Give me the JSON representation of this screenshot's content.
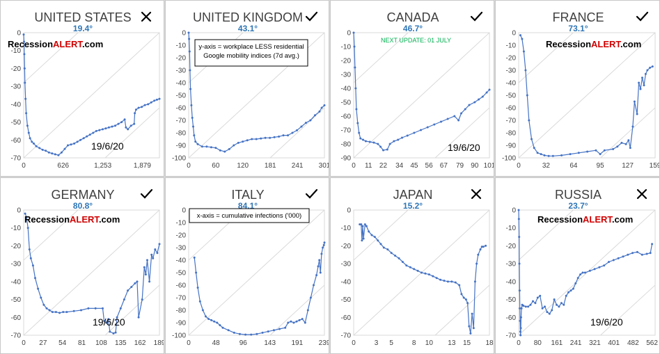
{
  "colors": {
    "series": "#4472c4",
    "angle": "#2e75b6",
    "diagonal": "#d9d9d9",
    "brand_red": "#d00000",
    "update_green": "#00b050"
  },
  "icons": {
    "check": "check-icon",
    "cross": "cross-icon"
  },
  "chart_data": [
    {
      "type": "scatter",
      "title": "UNITED STATES",
      "angle_label": "19.4°",
      "status": "cross",
      "brand": [
        "Recession",
        "ALERT",
        ".com"
      ],
      "date_label": "19/6/20",
      "note": [],
      "update_note": "",
      "xticks": [
        "0",
        "626",
        "1,253",
        "1,879"
      ],
      "xlim": [
        0,
        2150
      ],
      "yticks": [
        "0",
        "-10",
        "-20",
        "-30",
        "-40",
        "-50",
        "-60",
        "-70"
      ],
      "ylim": [
        -70,
        0
      ],
      "x": [
        0,
        5,
        10,
        15,
        20,
        30,
        40,
        60,
        80,
        100,
        130,
        160,
        200,
        250,
        300,
        350,
        400,
        450,
        500,
        550,
        600,
        650,
        700,
        750,
        800,
        850,
        900,
        950,
        1000,
        1050,
        1100,
        1150,
        1200,
        1250,
        1300,
        1350,
        1400,
        1450,
        1500,
        1550,
        1600,
        1620,
        1650,
        1700,
        1750,
        1760,
        1780,
        1820,
        1870,
        1920,
        1970,
        2020,
        2070,
        2110,
        2150
      ],
      "y": [
        -1,
        -5,
        -12,
        -20,
        -28,
        -37,
        -45,
        -52,
        -56,
        -59,
        -61,
        -62,
        -63.5,
        -64.5,
        -65.5,
        -66,
        -67,
        -67.5,
        -68,
        -68.5,
        -67,
        -65,
        -63,
        -62.5,
        -62,
        -61,
        -60,
        -59,
        -58,
        -57,
        -56,
        -55,
        -54.5,
        -54,
        -53.5,
        -53,
        -52.5,
        -52,
        -51,
        -50,
        -48.5,
        -53,
        -54,
        -52,
        -51,
        -45,
        -43,
        -42,
        -41.5,
        -40.5,
        -40,
        -39,
        -38,
        -37.5,
        -37
      ]
    },
    {
      "type": "scatter",
      "title": "UNITED KINGDOM",
      "angle_label": "43.1°",
      "status": "check",
      "brand": [],
      "date_label": "",
      "note": [
        "y-axis = workplace LESS residential",
        "Google mobility indices (7d avg.)"
      ],
      "update_note": "",
      "xticks": [
        "0",
        "60",
        "120",
        "181",
        "241",
        "301"
      ],
      "xlim": [
        0,
        301
      ],
      "yticks": [
        "0",
        "-10",
        "-20",
        "-30",
        "-40",
        "-50",
        "-60",
        "-70",
        "-80",
        "-90",
        "-100"
      ],
      "ylim": [
        -100,
        0
      ],
      "x": [
        0,
        1,
        2,
        3,
        4,
        6,
        8,
        10,
        12,
        15,
        20,
        30,
        40,
        50,
        60,
        70,
        80,
        90,
        100,
        110,
        120,
        130,
        140,
        150,
        160,
        170,
        180,
        190,
        200,
        210,
        220,
        230,
        240,
        250,
        260,
        270,
        280,
        290,
        295,
        301
      ],
      "y": [
        0,
        -5,
        -15,
        -30,
        -45,
        -58,
        -68,
        -75,
        -82,
        -87,
        -89,
        -91,
        -91,
        -91.5,
        -92,
        -94,
        -95,
        -93,
        -90,
        -88,
        -87,
        -86,
        -85,
        -85,
        -84.5,
        -84,
        -84,
        -83.5,
        -83,
        -82,
        -82,
        -80,
        -78,
        -75,
        -72,
        -70,
        -66,
        -63,
        -60,
        -58
      ]
    },
    {
      "type": "scatter",
      "title": "CANADA",
      "angle_label": "46.7°",
      "status": "check",
      "brand": [],
      "date_label": "19/6/20",
      "note": [],
      "update_note": "NEXT UPDATE: 01 JULY",
      "xticks": [
        "0",
        "11",
        "22",
        "34",
        "45",
        "56",
        "67",
        "79",
        "90",
        "101"
      ],
      "xlim": [
        0,
        101
      ],
      "yticks": [
        "0",
        "-10",
        "-20",
        "-30",
        "-40",
        "-50",
        "-60",
        "-70",
        "-80",
        "-90"
      ],
      "ylim": [
        -90,
        0
      ],
      "x": [
        0,
        0.5,
        1,
        1.5,
        2,
        3,
        4,
        5,
        7,
        9,
        12,
        15,
        18,
        20,
        22,
        25,
        27,
        30,
        33,
        36,
        40,
        45,
        50,
        55,
        60,
        65,
        70,
        75,
        78,
        80,
        83,
        86,
        90,
        93,
        96,
        99,
        101
      ],
      "y": [
        0,
        -10,
        -25,
        -40,
        -55,
        -65,
        -72,
        -76,
        -77,
        -78,
        -78.5,
        -79,
        -80,
        -82,
        -84.5,
        -84,
        -80,
        -78,
        -77,
        -75.5,
        -74,
        -72,
        -70,
        -68,
        -66,
        -64,
        -62,
        -60,
        -63,
        -58,
        -55,
        -52,
        -50,
        -48,
        -46,
        -43,
        -41
      ]
    },
    {
      "type": "scatter",
      "title": "FRANCE",
      "angle_label": "73.1°",
      "status": "check",
      "brand": [
        "Recession",
        "ALERT",
        ".com"
      ],
      "date_label": "",
      "note": [],
      "update_note": "",
      "xticks": [
        "0",
        "32",
        "64",
        "95",
        "127",
        "159"
      ],
      "xlim": [
        0,
        159
      ],
      "yticks": [
        "0",
        "-10",
        "-20",
        "-30",
        "-40",
        "-50",
        "-60",
        "-70",
        "-80",
        "-90",
        "-100"
      ],
      "ylim": [
        -100,
        0
      ],
      "x": [
        2,
        4,
        6,
        8,
        10,
        12,
        15,
        18,
        22,
        26,
        30,
        35,
        40,
        50,
        60,
        70,
        80,
        90,
        95,
        100,
        110,
        115,
        120,
        125,
        128,
        130,
        133,
        135,
        138,
        140,
        142,
        144,
        146,
        148,
        150,
        153,
        156
      ],
      "y": [
        -2,
        -5,
        -15,
        -30,
        -50,
        -70,
        -85,
        -92,
        -96,
        -97,
        -98,
        -98.5,
        -98.5,
        -98,
        -97,
        -96,
        -95,
        -94,
        -97,
        -94,
        -93,
        -91,
        -88,
        -89,
        -86,
        -92,
        -75,
        -55,
        -65,
        -40,
        -45,
        -36,
        -42,
        -33,
        -30,
        -28,
        -27
      ]
    },
    {
      "type": "scatter",
      "title": "GERMANY",
      "angle_label": "80.8°",
      "status": "check",
      "brand": [
        "Recession",
        "ALERT",
        ".com"
      ],
      "date_label": "19/6/20",
      "note": [],
      "update_note": "",
      "xticks": [
        "0",
        "27",
        "54",
        "81",
        "108",
        "135",
        "162",
        "189"
      ],
      "xlim": [
        0,
        189
      ],
      "yticks": [
        "0",
        "-10",
        "-20",
        "-30",
        "-40",
        "-50",
        "-60",
        "-70"
      ],
      "ylim": [
        -70,
        0
      ],
      "x": [
        2,
        4,
        6,
        8,
        10,
        13,
        16,
        20,
        24,
        28,
        32,
        36,
        40,
        45,
        50,
        55,
        60,
        70,
        80,
        90,
        100,
        110,
        112,
        115,
        118,
        120,
        125,
        128,
        130,
        135,
        140,
        145,
        150,
        155,
        158,
        160,
        165,
        168,
        170,
        172,
        175,
        178,
        180,
        183,
        186,
        189
      ],
      "y": [
        -2,
        -4,
        -10,
        -22,
        -27,
        -31,
        -38,
        -44,
        -49,
        -53,
        -55,
        -56,
        -57,
        -57,
        -57.5,
        -57,
        -57,
        -56.5,
        -56,
        -55,
        -55,
        -55,
        -62,
        -63,
        -61,
        -68,
        -69,
        -68.5,
        -60,
        -55,
        -50,
        -45,
        -43,
        -41,
        -40,
        -60,
        -50,
        -32,
        -36,
        -28,
        -40,
        -25,
        -27,
        -22,
        -24,
        -19
      ]
    },
    {
      "type": "scatter",
      "title": "ITALY",
      "angle_label": "84.1°",
      "status": "check",
      "brand": [],
      "date_label": "",
      "note": [
        "x-axis = cumulative infections ('000)"
      ],
      "update_note": "",
      "xticks": [
        "0",
        "48",
        "96",
        "143",
        "191",
        "239"
      ],
      "xlim": [
        0,
        239
      ],
      "yticks": [
        "0",
        "-10",
        "-20",
        "-30",
        "-40",
        "-50",
        "-60",
        "-70",
        "-80",
        "-90",
        "-100"
      ],
      "ylim": [
        -100,
        0
      ],
      "x": [
        10,
        13,
        16,
        20,
        25,
        30,
        35,
        40,
        45,
        50,
        55,
        60,
        70,
        80,
        90,
        100,
        110,
        120,
        130,
        140,
        150,
        160,
        170,
        175,
        180,
        185,
        190,
        195,
        200,
        205,
        210,
        215,
        220,
        225,
        228,
        230,
        232,
        234,
        236,
        238,
        239
      ],
      "y": [
        -38,
        -50,
        -62,
        -73,
        -80,
        -85,
        -87,
        -88,
        -89,
        -90,
        -92,
        -94,
        -96,
        -98,
        -99,
        -99.5,
        -99.5,
        -99,
        -98,
        -97,
        -96,
        -95,
        -94,
        -90,
        -89,
        -90,
        -89,
        -88,
        -87,
        -90,
        -80,
        -70,
        -60,
        -52,
        -45,
        -40,
        -50,
        -35,
        -30,
        -28,
        -26
      ]
    },
    {
      "type": "scatter",
      "title": "JAPAN",
      "angle_label": "15.2°",
      "status": "cross",
      "brand": [],
      "date_label": "",
      "note": [],
      "update_note": "",
      "xticks": [
        "0",
        "3",
        "5",
        "8",
        "10",
        "13",
        "15",
        "18"
      ],
      "xlim": [
        0,
        18
      ],
      "yticks": [
        "0",
        "-10",
        "-20",
        "-30",
        "-40",
        "-50",
        "-60",
        "-70"
      ],
      "ylim": [
        -70,
        0
      ],
      "x": [
        0.8,
        1.0,
        1.1,
        1.2,
        1.3,
        1.5,
        1.7,
        2.0,
        2.4,
        2.8,
        3.2,
        3.6,
        4.0,
        4.5,
        5.0,
        5.5,
        6.0,
        6.5,
        7.0,
        7.5,
        8.0,
        8.5,
        9.0,
        9.5,
        10.0,
        10.5,
        11.0,
        11.5,
        12.0,
        12.5,
        13.0,
        13.5,
        14.0,
        14.3,
        14.6,
        14.9,
        15.1,
        15.3,
        15.5,
        15.7,
        15.9,
        16.1,
        16.3,
        16.5,
        16.8,
        17.0,
        17.2,
        17.5
      ],
      "y": [
        -8,
        -8,
        -17,
        -9,
        -16,
        -8,
        -9,
        -12,
        -14,
        -15,
        -17,
        -19,
        -21,
        -22,
        -24,
        -25.5,
        -27,
        -29,
        -31,
        -32,
        -33,
        -34,
        -35,
        -35.5,
        -36,
        -37,
        -38,
        -39,
        -39.5,
        -40,
        -40,
        -40.5,
        -42,
        -47,
        -49,
        -50,
        -52,
        -65,
        -69,
        -58,
        -66,
        -40,
        -30,
        -25,
        -22,
        -20.5,
        -20.5,
        -20
      ]
    },
    {
      "type": "scatter",
      "title": "RUSSIA",
      "angle_label": "23.7°",
      "status": "cross",
      "brand": [
        "Recession",
        "ALERT",
        ".com"
      ],
      "date_label": "19/6/20",
      "note": [],
      "update_note": "",
      "xticks": [
        "0",
        "80",
        "161",
        "241",
        "321",
        "401",
        "482",
        "562"
      ],
      "xlim": [
        0,
        575
      ],
      "yticks": [
        "0",
        "-10",
        "-20",
        "-30",
        "-40",
        "-50",
        "-60",
        "-70"
      ],
      "ylim": [
        -70,
        0
      ],
      "x": [
        0,
        1,
        2,
        3,
        4,
        5,
        6,
        7,
        8,
        9,
        10,
        12,
        15,
        20,
        30,
        40,
        50,
        60,
        70,
        80,
        90,
        100,
        110,
        120,
        130,
        140,
        150,
        160,
        170,
        180,
        190,
        200,
        210,
        220,
        230,
        240,
        250,
        260,
        270,
        280,
        300,
        320,
        340,
        360,
        380,
        400,
        420,
        440,
        460,
        480,
        500,
        520,
        540,
        555,
        562
      ],
      "y": [
        0,
        -5,
        -15,
        -30,
        -45,
        -55,
        -62,
        -68,
        -70,
        -66,
        -60,
        -55,
        -53,
        -53.5,
        -54,
        -54,
        -53,
        -51,
        -52,
        -49,
        -48,
        -55,
        -54,
        -57,
        -58,
        -56,
        -50,
        -53,
        -54,
        -52,
        -53,
        -48,
        -46,
        -45,
        -44,
        -41,
        -38,
        -36,
        -35,
        -35,
        -34,
        -33,
        -32,
        -31,
        -29,
        -28,
        -27,
        -26,
        -25,
        -24,
        -23.5,
        -25,
        -24.5,
        -24,
        -19
      ]
    }
  ]
}
